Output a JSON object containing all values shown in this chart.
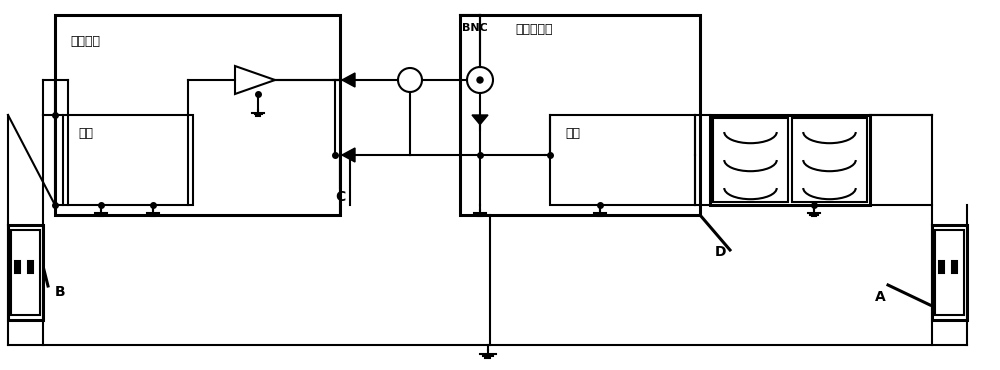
{
  "bg_color": "#ffffff",
  "line_color": "#000000",
  "lw": 1.5,
  "lw_thick": 2.2,
  "label_A": "A",
  "label_B": "B",
  "label_C": "C",
  "label_D": "D",
  "label_DUT": "被测设备",
  "label_OSC": "传统示波器",
  "label_PS1": "电源",
  "label_PS2": "电源",
  "label_BNC": "BNC",
  "fs_main": 9,
  "fs_label": 10,
  "fs_bnc": 8
}
